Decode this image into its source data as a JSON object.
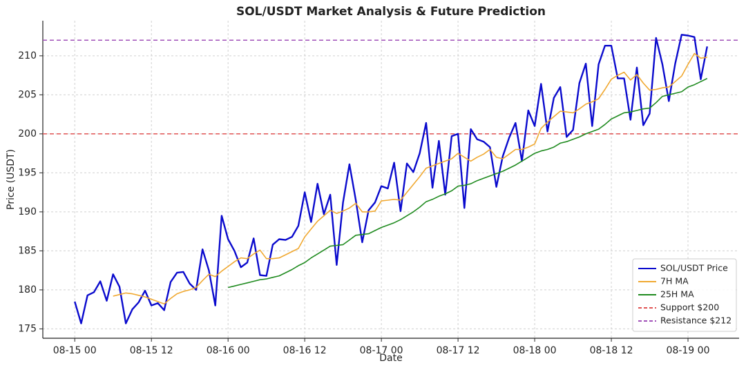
{
  "chart_data": {
    "type": "line",
    "title": "SOL/USDT Market Analysis & Future Prediction",
    "xlabel": "Date",
    "ylabel": "Price (USDT)",
    "x": [
      "08-15 00",
      "08-15 01",
      "08-15 02",
      "08-15 03",
      "08-15 04",
      "08-15 05",
      "08-15 06",
      "08-15 07",
      "08-15 08",
      "08-15 09",
      "08-15 10",
      "08-15 11",
      "08-15 12",
      "08-15 13",
      "08-15 14",
      "08-15 15",
      "08-15 16",
      "08-15 17",
      "08-15 18",
      "08-15 19",
      "08-15 20",
      "08-15 21",
      "08-15 22",
      "08-15 23",
      "08-16 00",
      "08-16 01",
      "08-16 02",
      "08-16 03",
      "08-16 04",
      "08-16 05",
      "08-16 06",
      "08-16 07",
      "08-16 08",
      "08-16 09",
      "08-16 10",
      "08-16 11",
      "08-16 12",
      "08-16 13",
      "08-16 14",
      "08-16 15",
      "08-16 16",
      "08-16 17",
      "08-16 18",
      "08-16 19",
      "08-16 20",
      "08-16 21",
      "08-16 22",
      "08-16 23",
      "08-17 00",
      "08-17 01",
      "08-17 02",
      "08-17 03",
      "08-17 04",
      "08-17 05",
      "08-17 06",
      "08-17 07",
      "08-17 08",
      "08-17 09",
      "08-17 10",
      "08-17 11",
      "08-17 12",
      "08-17 13",
      "08-17 14",
      "08-17 15",
      "08-17 16",
      "08-17 17",
      "08-17 18",
      "08-17 19",
      "08-17 20",
      "08-17 21",
      "08-17 22",
      "08-17 23",
      "08-18 00",
      "08-18 01",
      "08-18 02",
      "08-18 03",
      "08-18 04",
      "08-18 05",
      "08-18 06",
      "08-18 07",
      "08-18 08",
      "08-18 09",
      "08-18 10",
      "08-18 11",
      "08-18 12",
      "08-18 13",
      "08-18 14",
      "08-18 15",
      "08-18 16",
      "08-18 17",
      "08-18 18",
      "08-18 19",
      "08-18 20",
      "08-18 21",
      "08-18 22",
      "08-18 23",
      "08-19 00",
      "08-19 01",
      "08-19 02",
      "08-19 03"
    ],
    "series": [
      {
        "name": "SOL/USDT Price",
        "color": "#0a0acd",
        "width": 2.4,
        "values": [
          178.5,
          175.7,
          179.3,
          179.7,
          181.1,
          178.6,
          182,
          180.4,
          175.7,
          177.5,
          178.4,
          179.9,
          178,
          178.3,
          177.4,
          181,
          182.2,
          182.3,
          180.8,
          180,
          185.2,
          182.5,
          178,
          189.5,
          186.5,
          185,
          182.9,
          183.5,
          186.6,
          181.9,
          181.8,
          185.8,
          186.5,
          186.4,
          186.8,
          188.2,
          192.5,
          188.7,
          193.6,
          189.7,
          192.2,
          183.2,
          191.2,
          196.1,
          191.5,
          186.1,
          190.2,
          191.2,
          193.3,
          193,
          196.3,
          190.1,
          196.2,
          195.1,
          197.5,
          201.4,
          193.1,
          199.1,
          192.2,
          199.7,
          200,
          190.5,
          200.6,
          199.3,
          199,
          198.3,
          193.2,
          197.1,
          199.5,
          201.4,
          196.5,
          203,
          201,
          206.4,
          200.3,
          204.6,
          206,
          199.6,
          200.5,
          206.5,
          209,
          201,
          208.9,
          211.3,
          211.3,
          207.1,
          207.1,
          201.8,
          208.5,
          201.1,
          202.6,
          212.3,
          208.9,
          204.2,
          209,
          212.7,
          212.6,
          212.4,
          207,
          211.2
        ]
      },
      {
        "name": "7H MA",
        "color": "#f0a830",
        "width": 1.6,
        "values": [
          null,
          null,
          null,
          null,
          null,
          null,
          179.2,
          179.4,
          179.6,
          179.5,
          179.3,
          179.1,
          178.8,
          178.5,
          178.2,
          178.9,
          179.5,
          179.8,
          180,
          180.3,
          181.2,
          182,
          181.7,
          182.4,
          183,
          183.6,
          184.1,
          184,
          184.6,
          185.1,
          184,
          184,
          184.1,
          184.5,
          184.9,
          185.3,
          186.8,
          187.8,
          188.8,
          189.5,
          190.2,
          189.8,
          190.1,
          190.5,
          191.1,
          190,
          190,
          190.1,
          191.4,
          191.5,
          191.6,
          191.5,
          192.5,
          193.5,
          194.5,
          195.6,
          195.9,
          196.2,
          196.5,
          196.8,
          197.5,
          197,
          196.5,
          197,
          197.4,
          198,
          197,
          196.8,
          197.4,
          198,
          198,
          198.3,
          198.7,
          200.7,
          201.5,
          202.2,
          202.9,
          202.8,
          202.7,
          203.2,
          203.8,
          204.1,
          204.5,
          205.7,
          207,
          207.5,
          207.9,
          206.9,
          207.6,
          206.5,
          205.6,
          205.7,
          205.9,
          206,
          206.7,
          207.4,
          208.9,
          210.3,
          209.7,
          209.8
        ]
      },
      {
        "name": "25H MA",
        "color": "#1e8a1e",
        "width": 1.6,
        "values": [
          null,
          null,
          null,
          null,
          null,
          null,
          null,
          null,
          null,
          null,
          null,
          null,
          null,
          null,
          null,
          null,
          null,
          null,
          null,
          null,
          null,
          null,
          null,
          null,
          180.3,
          180.5,
          180.7,
          180.9,
          181.1,
          181.3,
          181.4,
          181.6,
          181.8,
          182.2,
          182.6,
          183.1,
          183.5,
          184.1,
          184.6,
          185.1,
          185.6,
          185.7,
          185.8,
          186.4,
          187,
          187.1,
          187.2,
          187.6,
          188,
          188.3,
          188.6,
          189,
          189.5,
          190,
          190.6,
          191.3,
          191.6,
          192,
          192.3,
          192.7,
          193.3,
          193.4,
          193.6,
          194,
          194.3,
          194.6,
          194.9,
          195.2,
          195.6,
          196,
          196.5,
          197,
          197.5,
          197.8,
          198,
          198.3,
          198.8,
          199,
          199.3,
          199.6,
          200,
          200.3,
          200.6,
          201.2,
          201.9,
          202.3,
          202.7,
          202.8,
          203,
          203.2,
          203.3,
          204,
          204.8,
          205,
          205.2,
          205.4,
          206,
          206.3,
          206.7,
          207.1
        ]
      }
    ],
    "hlines": [
      {
        "name": "Support $200",
        "value": 200,
        "color": "#e05252"
      },
      {
        "name": "Resistance $212",
        "value": 212,
        "color": "#a050b8"
      }
    ],
    "xlim": [
      "08-14 19",
      "08-19 08"
    ],
    "xticks": [
      "08-15 00",
      "08-15 12",
      "08-16 00",
      "08-16 12",
      "08-17 00",
      "08-17 12",
      "08-18 00",
      "08-18 12",
      "08-19 00"
    ],
    "ylim": [
      173.8,
      214.5
    ],
    "yticks": [
      175,
      180,
      185,
      190,
      195,
      200,
      205,
      210
    ],
    "grid": true,
    "legend": "lower right"
  }
}
